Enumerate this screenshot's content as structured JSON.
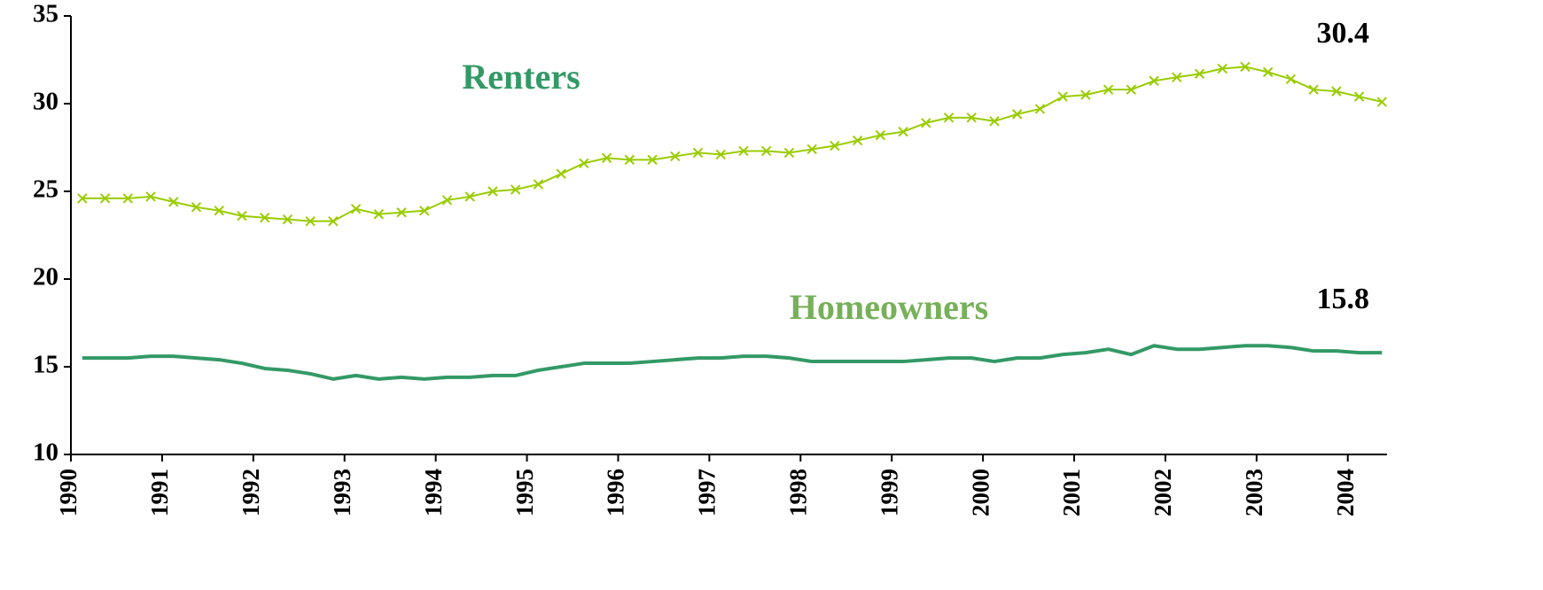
{
  "chart_data": {
    "type": "line",
    "annotations": [
      "Renters",
      "Homeowners",
      "30.4",
      "15.8"
    ],
    "x": [
      1990.125,
      1990.375,
      1990.625,
      1990.875,
      1991.125,
      1991.375,
      1991.625,
      1991.875,
      1992.125,
      1992.375,
      1992.625,
      1992.875,
      1993.125,
      1993.375,
      1993.625,
      1993.875,
      1994.125,
      1994.375,
      1994.625,
      1994.875,
      1995.125,
      1995.375,
      1995.625,
      1995.875,
      1996.125,
      1996.375,
      1996.625,
      1996.875,
      1997.125,
      1997.375,
      1997.625,
      1997.875,
      1998.125,
      1998.375,
      1998.625,
      1998.875,
      1999.125,
      1999.375,
      1999.625,
      1999.875,
      2000.125,
      2000.375,
      2000.625,
      2000.875,
      2001.125,
      2001.375,
      2001.625,
      2001.875,
      2002.125,
      2002.375,
      2002.625,
      2002.875,
      2003.125,
      2003.375,
      2003.625,
      2003.875,
      2004.125,
      2004.375
    ],
    "series": [
      {
        "name": "Renters",
        "color": "#99cc00",
        "marker": "x",
        "values": [
          24.6,
          24.6,
          24.6,
          24.7,
          24.4,
          24.1,
          23.9,
          23.6,
          23.5,
          23.4,
          23.3,
          23.3,
          24.0,
          23.7,
          23.8,
          23.9,
          24.5,
          24.7,
          25.0,
          25.1,
          25.4,
          26.0,
          26.6,
          26.9,
          26.8,
          26.8,
          27.0,
          27.2,
          27.1,
          27.3,
          27.3,
          27.2,
          27.4,
          27.6,
          27.9,
          28.2,
          28.4,
          28.9,
          29.2,
          29.2,
          29.0,
          29.4,
          29.7,
          30.4,
          30.5,
          30.8,
          30.8,
          31.3,
          31.5,
          31.7,
          32.0,
          32.1,
          31.8,
          31.4,
          30.8,
          30.7,
          30.4,
          30.1
        ]
      },
      {
        "name": "Homeowners",
        "color": "#339966",
        "marker": "none",
        "values": [
          15.5,
          15.5,
          15.5,
          15.6,
          15.6,
          15.5,
          15.4,
          15.2,
          14.9,
          14.8,
          14.6,
          14.3,
          14.5,
          14.3,
          14.4,
          14.3,
          14.4,
          14.4,
          14.5,
          14.5,
          14.8,
          15.0,
          15.2,
          15.2,
          15.2,
          15.3,
          15.4,
          15.5,
          15.5,
          15.6,
          15.6,
          15.5,
          15.3,
          15.3,
          15.3,
          15.3,
          15.3,
          15.4,
          15.5,
          15.5,
          15.3,
          15.5,
          15.5,
          15.7,
          15.8,
          16.0,
          15.7,
          16.2,
          16.0,
          16.0,
          16.1,
          16.2,
          16.2,
          16.1,
          15.9,
          15.9,
          15.8,
          15.8
        ]
      }
    ],
    "xlim": [
      1990,
      2004.43
    ],
    "xticks": [
      1990,
      1991,
      1992,
      1993,
      1994,
      1995,
      1996,
      1997,
      1998,
      1999,
      2000,
      2001,
      2002,
      2003,
      2004
    ],
    "ylim": [
      10,
      35
    ],
    "yticks": [
      10,
      15,
      20,
      25,
      30,
      35
    ],
    "grid": false
  }
}
